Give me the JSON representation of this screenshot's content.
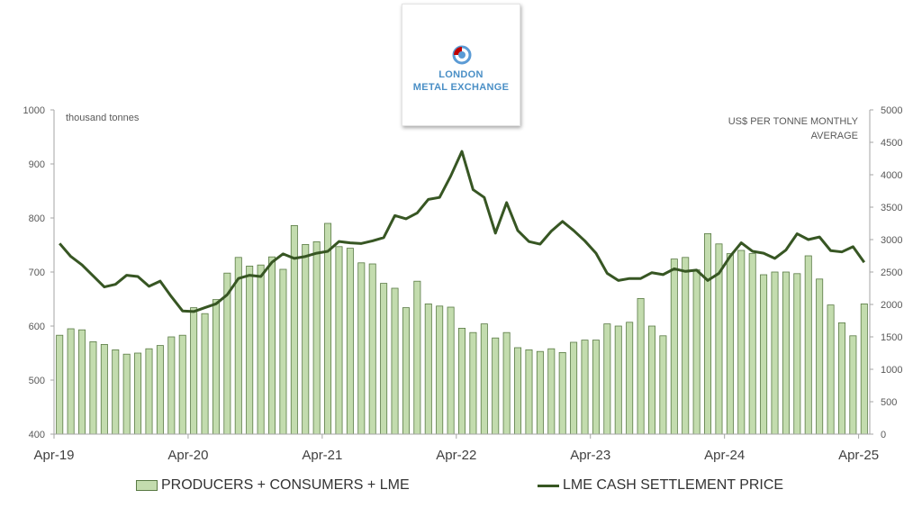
{
  "logo": {
    "line1": "LONDON",
    "line2": "METAL EXCHANGE",
    "colors": {
      "ring": "#5b9bd5",
      "mark": "#c00000",
      "text": "#4a8fc6"
    }
  },
  "chart_data": {
    "type": "bar+line",
    "left_axis": {
      "unit_label": "thousand tonnes",
      "min": 400,
      "max": 1000,
      "ticks": [
        400,
        500,
        600,
        700,
        800,
        900,
        1000
      ]
    },
    "right_axis": {
      "unit_label": "US$ PER TONNE MONTHLY AVERAGE",
      "unit_label_lines": [
        "US$ PER TONNE MONTHLY",
        "AVERAGE"
      ],
      "min": 0,
      "max": 5000,
      "ticks": [
        0,
        500,
        1000,
        1500,
        2000,
        2500,
        3000,
        3500,
        4000,
        4500,
        5000
      ]
    },
    "x_tick_labels": [
      "Apr-19",
      "Apr-20",
      "Apr-21",
      "Apr-22",
      "Apr-23",
      "Apr-24",
      "Apr-25"
    ],
    "months_count": 73,
    "series": [
      {
        "name": "PRODUCERS + CONSUMERS + LME",
        "kind": "bar",
        "axis": "left",
        "color": "#c3dcae",
        "edge_color": "#597a44",
        "values": [
          583,
          595,
          593,
          571,
          566,
          556,
          548,
          550,
          558,
          564,
          580,
          583,
          634,
          623,
          649,
          698,
          727,
          711,
          713,
          728,
          705,
          786,
          751,
          756,
          790,
          747,
          744,
          717,
          715,
          679,
          670,
          634,
          683,
          641,
          637,
          635,
          596,
          588,
          604,
          578,
          588,
          560,
          556,
          553,
          558,
          551,
          570,
          574,
          574,
          604,
          600,
          607,
          651,
          600,
          582,
          724,
          727,
          704,
          771,
          752,
          734,
          740,
          734,
          695,
          700,
          700,
          697,
          730,
          687,
          639,
          606,
          582,
          641
        ]
      },
      {
        "name": "LME CASH SETTLEMENT PRICE",
        "kind": "line",
        "axis": "right",
        "color": "#375623",
        "values": [
          2940,
          2740,
          2610,
          2440,
          2270,
          2310,
          2450,
          2430,
          2280,
          2360,
          2120,
          1900,
          1890,
          1950,
          2010,
          2150,
          2400,
          2450,
          2430,
          2650,
          2780,
          2710,
          2740,
          2790,
          2820,
          2970,
          2950,
          2940,
          2980,
          3030,
          3370,
          3320,
          3410,
          3620,
          3650,
          3980,
          4360,
          3770,
          3650,
          3100,
          3570,
          3140,
          2970,
          2930,
          3130,
          3280,
          3140,
          2980,
          2790,
          2480,
          2370,
          2400,
          2400,
          2490,
          2460,
          2550,
          2510,
          2530,
          2370,
          2480,
          2740,
          2950,
          2820,
          2790,
          2710,
          2840,
          3090,
          3000,
          3040,
          2830,
          2810,
          2890,
          2650
        ]
      }
    ]
  }
}
